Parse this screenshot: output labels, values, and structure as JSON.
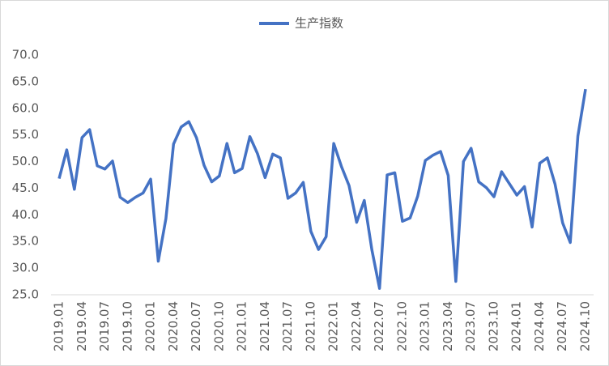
{
  "chart_data": {
    "type": "line",
    "categories": [
      "2019.01",
      null,
      null,
      "2019.04",
      null,
      null,
      "2019.07",
      null,
      null,
      "2019.10",
      null,
      null,
      "2020.01",
      null,
      null,
      "2020.04",
      null,
      null,
      "2020.07",
      null,
      null,
      "2020.10",
      null,
      null,
      "2021.01",
      null,
      null,
      "2021.04",
      null,
      null,
      "2021.07",
      null,
      null,
      "2021.10",
      null,
      null,
      "2022.01",
      null,
      null,
      "2022.04",
      null,
      null,
      "2022.07",
      null,
      null,
      "2022.10",
      null,
      null,
      "2023.01",
      null,
      null,
      "2023.04",
      null,
      null,
      "2023.07",
      null,
      null,
      "2023.10",
      null,
      null,
      "2024.01",
      null,
      null,
      "2024.04",
      null,
      null,
      "2024.07",
      null,
      null,
      "2024.10"
    ],
    "series": [
      {
        "name": "生产指数",
        "color": "#4472c4",
        "values": [
          46.8,
          52.2,
          44.8,
          54.5,
          56.0,
          49.2,
          48.6,
          50.1,
          43.3,
          42.3,
          43.3,
          44.1,
          46.7,
          31.3,
          39.3,
          53.3,
          56.5,
          57.5,
          54.5,
          49.3,
          46.2,
          47.3,
          53.4,
          47.9,
          48.7,
          54.7,
          51.5,
          47.0,
          51.4,
          50.7,
          43.1,
          44.1,
          46.1,
          36.9,
          33.5,
          35.9,
          53.4,
          49.1,
          45.5,
          38.6,
          42.7,
          33.4,
          26.2,
          47.5,
          47.9,
          38.8,
          39.4,
          43.5,
          50.2,
          51.2,
          51.9,
          47.4,
          27.5,
          50.0,
          52.5,
          46.2,
          45.1,
          43.4,
          48.1,
          45.9,
          43.7,
          45.3,
          37.7,
          49.7,
          50.7,
          45.8,
          38.5,
          34.8,
          54.8,
          63.6
        ]
      }
    ],
    "ylim": [
      25,
      70
    ],
    "yticks": [
      {
        "value": 25,
        "label": "25.0"
      },
      {
        "value": 30,
        "label": "30.0"
      },
      {
        "value": 35,
        "label": "35.0"
      },
      {
        "value": 40,
        "label": "40.0"
      },
      {
        "value": 45,
        "label": "45.0"
      },
      {
        "value": 50,
        "label": "50.0"
      },
      {
        "value": 55,
        "label": "55.0"
      },
      {
        "value": 60,
        "label": "60.0"
      },
      {
        "value": 65,
        "label": "65.0"
      },
      {
        "value": 70,
        "label": "70.0"
      }
    ],
    "grid": false,
    "legend": "top"
  }
}
